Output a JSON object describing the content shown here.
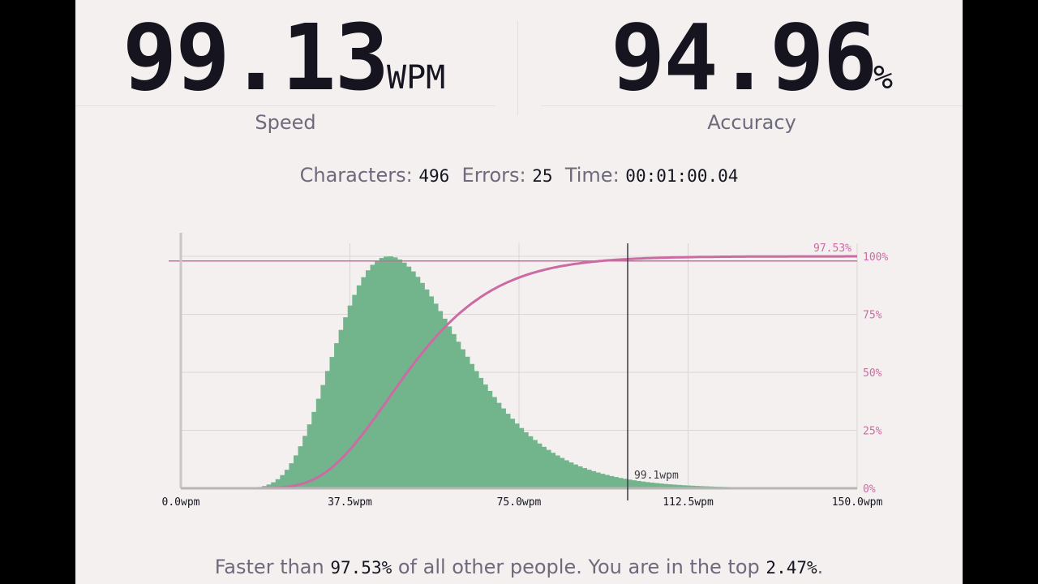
{
  "colors": {
    "background": "#f3f0ef",
    "text_dark": "#15141f",
    "text_muted": "#6e6a7c",
    "histogram": "#72b58c",
    "cdf": "#cc6ba3",
    "grid": "#d9d6d5"
  },
  "stats": {
    "speed": {
      "value": "99.13",
      "unit": "WPM",
      "label": "Speed"
    },
    "accuracy": {
      "value": "94.96",
      "unit": "%",
      "label": "Accuracy"
    }
  },
  "summary": {
    "characters_label": "Characters:",
    "characters_value": "496",
    "errors_label": "Errors:",
    "errors_value": "25",
    "time_label": "Time:",
    "time_value": "00:01:00.04"
  },
  "chart_data": {
    "type": "bar",
    "x_ticks": [
      "0.0wpm",
      "37.5wpm",
      "75.0wpm",
      "112.5wpm",
      "150.0wpm"
    ],
    "y_ticks_right": [
      "0%",
      "25%",
      "50%",
      "75%",
      "100%"
    ],
    "xlim": [
      0,
      150
    ],
    "ylim_right": [
      0,
      100
    ],
    "distribution": {
      "mean_wpm": 48.5,
      "mode_wpm": 48.5
    },
    "marker": {
      "wpm": 99.1,
      "label": "99.1wpm"
    },
    "percentile_label": "97.53%",
    "grid": true
  },
  "footer": {
    "prefix": "Faster than",
    "percent": "97.53%",
    "middle": "of all other people. You are in the top",
    "top": "2.47%",
    "suffix": "."
  }
}
